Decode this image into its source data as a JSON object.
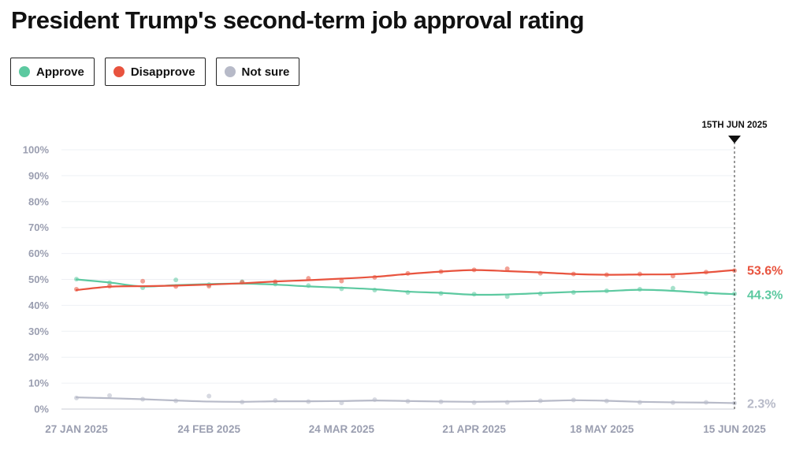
{
  "title": "President Trump's second-term job approval rating",
  "legend": [
    {
      "label": "Approve",
      "color": "#5cc9a0"
    },
    {
      "label": "Disapprove",
      "color": "#e8533e"
    },
    {
      "label": "Not sure",
      "color": "#b7bac8"
    }
  ],
  "chart_data": {
    "type": "line",
    "title": "President Trump's second-term job approval rating",
    "xlabel": "",
    "ylabel": "",
    "ylim": [
      0,
      100
    ],
    "y_ticks": [
      "0%",
      "10%",
      "20%",
      "30%",
      "40%",
      "50%",
      "60%",
      "70%",
      "80%",
      "90%",
      "100%"
    ],
    "x_ticks": [
      {
        "label": "27 JAN 2025",
        "day": 0
      },
      {
        "label": "24 FEB 2025",
        "day": 28
      },
      {
        "label": "24 MAR 2025",
        "day": 56
      },
      {
        "label": "21 APR 2025",
        "day": 84
      },
      {
        "label": "18 MAY 2025",
        "day": 111
      },
      {
        "label": "15 JUN 2025",
        "day": 139
      }
    ],
    "x_unit": "days since 27 Jan 2025",
    "marker_label": "15TH JUN 2025",
    "marker_day": 139,
    "series": [
      {
        "name": "Approve",
        "color": "#5cc9a0",
        "end_label": "44.3%",
        "trend": [
          [
            0,
            50.0
          ],
          [
            7,
            48.8
          ],
          [
            14,
            47.3
          ],
          [
            21,
            47.8
          ],
          [
            28,
            48.2
          ],
          [
            35,
            48.4
          ],
          [
            42,
            48.0
          ],
          [
            49,
            47.3
          ],
          [
            56,
            46.8
          ],
          [
            63,
            46.2
          ],
          [
            70,
            45.3
          ],
          [
            77,
            44.8
          ],
          [
            84,
            44.1
          ],
          [
            91,
            44.2
          ],
          [
            98,
            44.7
          ],
          [
            105,
            45.2
          ],
          [
            112,
            45.5
          ],
          [
            119,
            46.0
          ],
          [
            126,
            45.6
          ],
          [
            133,
            44.8
          ],
          [
            139,
            44.3
          ]
        ],
        "points": [
          [
            0,
            50.1
          ],
          [
            7,
            48.7
          ],
          [
            14,
            46.8
          ],
          [
            21,
            49.8
          ],
          [
            28,
            48.0
          ],
          [
            35,
            49.1
          ],
          [
            42,
            48.2
          ],
          [
            49,
            47.6
          ],
          [
            56,
            46.4
          ],
          [
            63,
            45.9
          ],
          [
            70,
            45.0
          ],
          [
            77,
            44.6
          ],
          [
            84,
            44.3
          ],
          [
            91,
            43.4
          ],
          [
            98,
            44.5
          ],
          [
            105,
            45.0
          ],
          [
            112,
            45.6
          ],
          [
            119,
            46.2
          ],
          [
            126,
            46.6
          ],
          [
            133,
            44.6
          ],
          [
            139,
            44.5
          ]
        ]
      },
      {
        "name": "Disapprove",
        "color": "#e8533e",
        "end_label": "53.6%",
        "trend": [
          [
            0,
            45.9
          ],
          [
            7,
            47.2
          ],
          [
            14,
            47.4
          ],
          [
            21,
            47.6
          ],
          [
            28,
            48.0
          ],
          [
            35,
            48.5
          ],
          [
            42,
            49.2
          ],
          [
            49,
            49.7
          ],
          [
            56,
            50.3
          ],
          [
            63,
            51.0
          ],
          [
            70,
            52.1
          ],
          [
            77,
            53.0
          ],
          [
            84,
            53.6
          ],
          [
            91,
            53.2
          ],
          [
            98,
            52.7
          ],
          [
            105,
            52.1
          ],
          [
            112,
            51.8
          ],
          [
            119,
            51.9
          ],
          [
            126,
            52.0
          ],
          [
            133,
            52.7
          ],
          [
            139,
            53.6
          ]
        ],
        "points": [
          [
            0,
            46.2
          ],
          [
            7,
            47.4
          ],
          [
            14,
            49.3
          ],
          [
            21,
            47.3
          ],
          [
            28,
            47.4
          ],
          [
            35,
            48.9
          ],
          [
            42,
            49.1
          ],
          [
            49,
            50.4
          ],
          [
            56,
            49.4
          ],
          [
            63,
            50.8
          ],
          [
            70,
            52.3
          ],
          [
            77,
            53.0
          ],
          [
            84,
            53.7
          ],
          [
            91,
            54.1
          ],
          [
            98,
            52.4
          ],
          [
            105,
            52.1
          ],
          [
            112,
            51.8
          ],
          [
            119,
            52.1
          ],
          [
            126,
            51.3
          ],
          [
            133,
            52.8
          ],
          [
            139,
            53.4
          ]
        ]
      },
      {
        "name": "Not sure",
        "color": "#b7bac8",
        "end_label": "2.3%",
        "trend": [
          [
            0,
            4.5
          ],
          [
            7,
            4.2
          ],
          [
            14,
            3.8
          ],
          [
            21,
            3.3
          ],
          [
            28,
            2.9
          ],
          [
            35,
            2.8
          ],
          [
            42,
            3.0
          ],
          [
            49,
            3.0
          ],
          [
            56,
            3.1
          ],
          [
            63,
            3.3
          ],
          [
            70,
            3.1
          ],
          [
            77,
            2.9
          ],
          [
            84,
            2.8
          ],
          [
            91,
            2.9
          ],
          [
            98,
            3.1
          ],
          [
            105,
            3.4
          ],
          [
            112,
            3.2
          ],
          [
            119,
            2.8
          ],
          [
            126,
            2.6
          ],
          [
            133,
            2.5
          ],
          [
            139,
            2.3
          ]
        ],
        "points": [
          [
            0,
            4.3
          ],
          [
            7,
            5.2
          ],
          [
            14,
            3.8
          ],
          [
            21,
            3.2
          ],
          [
            28,
            5.0
          ],
          [
            35,
            2.7
          ],
          [
            42,
            3.3
          ],
          [
            49,
            2.9
          ],
          [
            56,
            2.4
          ],
          [
            63,
            3.6
          ],
          [
            70,
            3.0
          ],
          [
            77,
            2.8
          ],
          [
            84,
            2.5
          ],
          [
            91,
            2.6
          ],
          [
            98,
            3.2
          ],
          [
            105,
            3.5
          ],
          [
            112,
            3.1
          ],
          [
            119,
            2.6
          ],
          [
            126,
            2.5
          ],
          [
            133,
            2.6
          ],
          [
            139,
            2.3
          ]
        ]
      }
    ]
  }
}
